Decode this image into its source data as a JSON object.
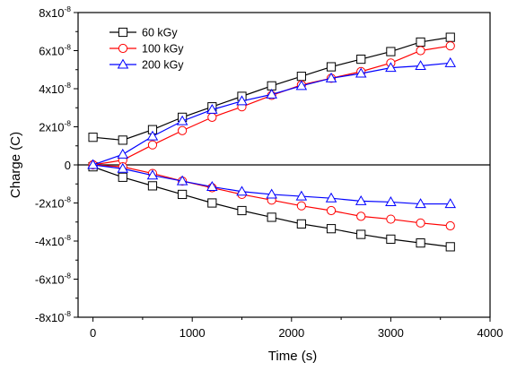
{
  "chart_data": {
    "type": "line",
    "xlabel": "Time (s)",
    "ylabel": "Charge (C)",
    "xlim": [
      -150,
      4000
    ],
    "ylim": [
      -8e-08,
      8e-08
    ],
    "x_ticks": [
      0,
      1000,
      2000,
      3000,
      4000
    ],
    "x_tick_labels": [
      "0",
      "1000",
      "2000",
      "3000",
      "4000"
    ],
    "y_ticks": [
      8e-08,
      6e-08,
      4e-08,
      2e-08,
      0,
      -2e-08,
      -4e-08,
      -6e-08,
      -8e-08
    ],
    "y_tick_labels": [
      {
        "base": "8x10",
        "exp": "-8"
      },
      {
        "base": "6x10",
        "exp": "-8"
      },
      {
        "base": "4x10",
        "exp": "-8"
      },
      {
        "base": "2x10",
        "exp": "-8"
      },
      {
        "base": "0",
        "exp": ""
      },
      {
        "base": "-2x10",
        "exp": "-8"
      },
      {
        "base": "-4x10",
        "exp": "-8"
      },
      {
        "base": "-6x10",
        "exp": "-8"
      },
      {
        "base": "-8x10",
        "exp": "-8"
      }
    ],
    "zero_line": true,
    "grid": false,
    "legend_position": "top-left",
    "x": [
      0,
      300,
      600,
      900,
      1200,
      1500,
      1800,
      2100,
      2400,
      2700,
      3000,
      3300,
      3600
    ],
    "series": [
      {
        "name": "60 kGy",
        "color": "#000000",
        "marker": "square",
        "in_legend": true,
        "values": [
          1.45e-08,
          1.3e-08,
          1.85e-08,
          2.5e-08,
          3.05e-08,
          3.6e-08,
          4.15e-08,
          4.65e-08,
          5.15e-08,
          5.55e-08,
          5.95e-08,
          6.45e-08,
          6.7e-08
        ]
      },
      {
        "name": "60 kGy",
        "color": "#000000",
        "marker": "square",
        "in_legend": false,
        "values": [
          -1e-09,
          -6.5e-09,
          -1.1e-08,
          -1.55e-08,
          -2e-08,
          -2.4e-08,
          -2.75e-08,
          -3.1e-08,
          -3.35e-08,
          -3.65e-08,
          -3.9e-08,
          -4.1e-08,
          -4.3e-08
        ]
      },
      {
        "name": "100 kGy",
        "color": "#ff0000",
        "marker": "circle",
        "in_legend": true,
        "values": [
          0.0,
          2.5e-09,
          1.05e-08,
          1.8e-08,
          2.5e-08,
          3.05e-08,
          3.65e-08,
          4.2e-08,
          4.55e-08,
          4.9e-08,
          5.35e-08,
          6e-08,
          6.25e-08
        ]
      },
      {
        "name": "100 kGy",
        "color": "#ff0000",
        "marker": "circle",
        "in_legend": false,
        "values": [
          0.0,
          -1e-09,
          -4.5e-09,
          -8.5e-09,
          -1.2e-08,
          -1.55e-08,
          -1.85e-08,
          -2.15e-08,
          -2.4e-08,
          -2.7e-08,
          -2.85e-08,
          -3.05e-08,
          -3.2e-08
        ]
      },
      {
        "name": "200 kGy",
        "color": "#0000ff",
        "marker": "triangle",
        "in_legend": true,
        "values": [
          0.0,
          5.5e-09,
          1.5e-08,
          2.3e-08,
          2.9e-08,
          3.35e-08,
          3.7e-08,
          4.15e-08,
          4.55e-08,
          4.8e-08,
          5.1e-08,
          5.2e-08,
          5.35e-08
        ]
      },
      {
        "name": "200 kGy",
        "color": "#0000ff",
        "marker": "triangle",
        "in_legend": false,
        "values": [
          0.0,
          -2e-09,
          -5.5e-09,
          -8.5e-09,
          -1.15e-08,
          -1.4e-08,
          -1.55e-08,
          -1.65e-08,
          -1.75e-08,
          -1.9e-08,
          -1.95e-08,
          -2.05e-08,
          -2.05e-08
        ]
      }
    ]
  }
}
